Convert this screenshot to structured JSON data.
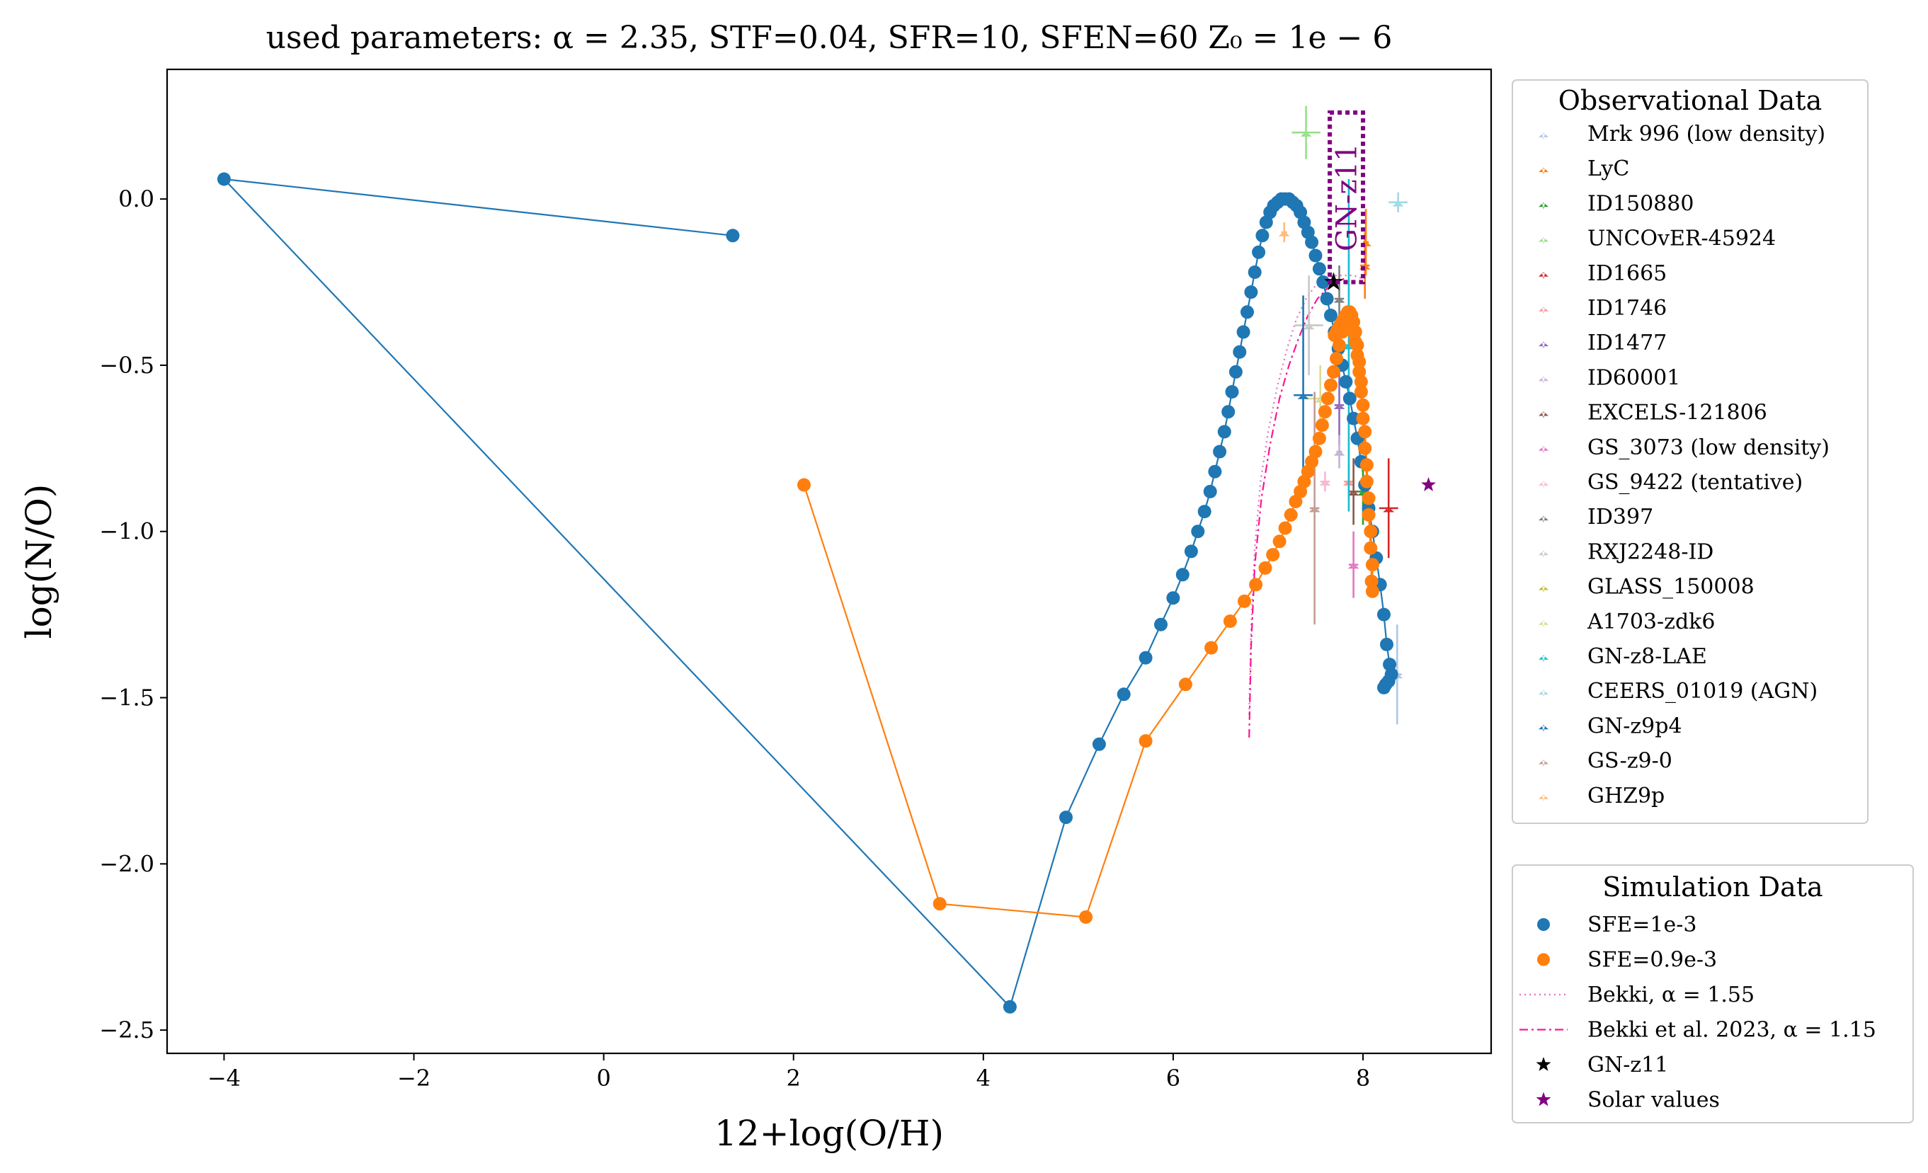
{
  "chart_data": {
    "type": "scatter",
    "title": "used parameters: α = 2.35, STF=0.04, SFR=10, SFEN=60 Z₀ = 1e − 6",
    "xlabel": "12+log(O/H)",
    "ylabel": "log(N/O)",
    "xlim": [
      -4.6,
      9.35
    ],
    "ylim": [
      -2.57,
      0.39
    ],
    "xticks": [
      -4,
      -2,
      0,
      2,
      4,
      6,
      8
    ],
    "yticks": [
      -2.5,
      -2.0,
      -1.5,
      -1.0,
      -0.5,
      0.0
    ],
    "xtick_labels": [
      "−4",
      "−2",
      "0",
      "2",
      "4",
      "6",
      "8"
    ],
    "ytick_labels": [
      "−2.5",
      "−2.0",
      "−1.5",
      "−1.0",
      "−0.5",
      "0.0"
    ],
    "grid": false,
    "annotation": {
      "text": "GN-z11",
      "color": "#800080",
      "box": {
        "x": [
          7.65,
          8.0
        ],
        "y": [
          -0.25,
          0.26
        ]
      }
    },
    "observational_legend": {
      "title": "Observational Data",
      "placement": "right-top",
      "entries": [
        {
          "name": "Mrk 996 (low density)",
          "color": "#aec7e8"
        },
        {
          "name": "LyC",
          "color": "#ff7f0e"
        },
        {
          "name": "ID150880",
          "color": "#2ca02c"
        },
        {
          "name": "UNCOvER-45924",
          "color": "#98df8a"
        },
        {
          "name": "ID1665",
          "color": "#d62728"
        },
        {
          "name": "ID1746",
          "color": "#ff9896"
        },
        {
          "name": "ID1477",
          "color": "#9467bd"
        },
        {
          "name": "ID60001",
          "color": "#c5b0d5"
        },
        {
          "name": "EXCELS-121806",
          "color": "#8c564b"
        },
        {
          "name": "GS_3073 (low density)",
          "color": "#e377c2"
        },
        {
          "name": "GS_9422 (tentative)",
          "color": "#f7b6d2"
        },
        {
          "name": "ID397",
          "color": "#7f7f7f"
        },
        {
          "name": "RXJ2248-ID",
          "color": "#c7c7c7"
        },
        {
          "name": "GLASS_150008",
          "color": "#bcbd22"
        },
        {
          "name": "A1703-zdk6",
          "color": "#dbdb8d"
        },
        {
          "name": "GN-z8-LAE",
          "color": "#17becf"
        },
        {
          "name": "CEERS_01019 (AGN)",
          "color": "#9edae5"
        },
        {
          "name": "GN-z9p4",
          "color": "#1f77b4"
        },
        {
          "name": "GS-z9-0",
          "color": "#c49c94"
        },
        {
          "name": "GHZ9p",
          "color": "#ffbb78"
        }
      ]
    },
    "simulation_legend": {
      "title": "Simulation Data",
      "placement": "right-bottom",
      "entries": [
        {
          "name": "SFE=1e-3",
          "color": "#1f77b4",
          "marker": "circle"
        },
        {
          "name": "SFE=0.9e-3",
          "color": "#ff7f0e",
          "marker": "circle"
        },
        {
          "name": "Bekki, α = 1.55",
          "color": "#e377c2",
          "marker": "dotted"
        },
        {
          "name": "Bekki et al. 2023, α = 1.15",
          "color": "#ff1493",
          "marker": "dashdot"
        },
        {
          "name": "GN-z11",
          "color": "#000000",
          "marker": "star"
        },
        {
          "name": "Solar values",
          "color": "#800080",
          "marker": "star"
        }
      ]
    },
    "observations": [
      {
        "name": "Mrk 996 (low density)",
        "x": 8.36,
        "y": -1.43,
        "xerr": 0.05,
        "yerr": 0.15
      },
      {
        "name": "LyC",
        "x": 8.03,
        "y": -0.13,
        "xerr": 0.03,
        "yerr": 0.1
      },
      {
        "name": "LyC",
        "x": 8.02,
        "y": -0.2,
        "xerr": 0.05,
        "yerr": 0.1
      },
      {
        "name": "ID150880",
        "x": 8.0,
        "y": -0.88,
        "xerr": 0.05,
        "yerr": 0.1
      },
      {
        "name": "UNCOvER-45924",
        "x": 7.4,
        "y": 0.2,
        "xerr": 0.15,
        "yerr": 0.08
      },
      {
        "name": "ID1665",
        "x": 8.27,
        "y": -0.93,
        "xerr": 0.1,
        "yerr": 0.15
      },
      {
        "name": "ID1746",
        "x": 7.85,
        "y": -0.85,
        "xerr": 0.05,
        "yerr": 0.05
      },
      {
        "name": "ID1477",
        "x": 7.75,
        "y": -0.62,
        "xerr": 0.05,
        "yerr": 0.12
      },
      {
        "name": "ID60001",
        "x": 7.75,
        "y": -0.76,
        "xerr": 0.03,
        "yerr": 0.05
      },
      {
        "name": "EXCELS-121806",
        "x": 7.9,
        "y": -0.88,
        "xerr": 0.05,
        "yerr": 0.1
      },
      {
        "name": "GS_3073 (low density)",
        "x": 7.9,
        "y": -1.1,
        "xerr": 0.05,
        "yerr": 0.1
      },
      {
        "name": "GS_9422 (tentative)",
        "x": 7.6,
        "y": -0.85,
        "xerr": 0.05,
        "yerr": 0.03
      },
      {
        "name": "ID397",
        "x": 7.75,
        "y": -0.3,
        "xerr": 0.05,
        "yerr": 0.1
      },
      {
        "name": "RXJ2248-ID",
        "x": 7.43,
        "y": -0.38,
        "xerr": 0.15,
        "yerr": 0.15
      },
      {
        "name": "GLASS_150008",
        "x": 7.7,
        "y": -0.4,
        "xerr": 0.05,
        "yerr": 0.05
      },
      {
        "name": "A1703-zdk6",
        "x": 7.55,
        "y": -0.6,
        "xerr": 0.15,
        "yerr": 0.1
      },
      {
        "name": "GN-z8-LAE",
        "x": 7.85,
        "y": -0.44,
        "xerr": 0.1,
        "yerr": 0.5
      },
      {
        "name": "CEERS_01019 (AGN)",
        "x": 8.37,
        "y": -0.01,
        "xerr": 0.1,
        "yerr": 0.03
      },
      {
        "name": "GN-z9p4",
        "x": 7.37,
        "y": -0.59,
        "xerr": 0.1,
        "yerr": 0.3
      },
      {
        "name": "GS-z9-0",
        "x": 7.49,
        "y": -0.93,
        "xerr": 0.05,
        "yerr": 0.35
      },
      {
        "name": "GHZ9p",
        "x": 7.17,
        "y": -0.1,
        "xerr": 0.03,
        "yerr": 0.03
      }
    ],
    "gnz11": {
      "x": 7.69,
      "y": -0.25
    },
    "solar": {
      "x": 8.69,
      "y": -0.86
    },
    "series": [
      {
        "name": "SFE=1e-3",
        "color": "#1f77b4",
        "x": [
          1.36,
          -4.0,
          4.28,
          4.87,
          5.22,
          5.48,
          5.71,
          5.87,
          6.0,
          6.1,
          6.19,
          6.26,
          6.33,
          6.39,
          6.44,
          6.49,
          6.54,
          6.58,
          6.62,
          6.66,
          6.7,
          6.74,
          6.78,
          6.82,
          6.86,
          6.9,
          6.94,
          6.98,
          7.02,
          7.06,
          7.1,
          7.14,
          7.18,
          7.22,
          7.26,
          7.3,
          7.34,
          7.38,
          7.42,
          7.46,
          7.5,
          7.54,
          7.58,
          7.62,
          7.66,
          7.7,
          7.74,
          7.78,
          7.82,
          7.86,
          7.9,
          7.94,
          7.98,
          8.02,
          8.06,
          8.1,
          8.14,
          8.18,
          8.22,
          8.25,
          8.28,
          8.3,
          8.27,
          8.24,
          8.22
        ],
        "y": [
          -0.11,
          0.06,
          -2.43,
          -1.86,
          -1.64,
          -1.49,
          -1.38,
          -1.28,
          -1.2,
          -1.13,
          -1.06,
          -1.0,
          -0.94,
          -0.88,
          -0.82,
          -0.76,
          -0.7,
          -0.64,
          -0.58,
          -0.52,
          -0.46,
          -0.4,
          -0.34,
          -0.28,
          -0.22,
          -0.16,
          -0.11,
          -0.07,
          -0.04,
          -0.02,
          -0.01,
          0.0,
          0.0,
          0.0,
          -0.01,
          -0.02,
          -0.04,
          -0.07,
          -0.1,
          -0.13,
          -0.17,
          -0.21,
          -0.25,
          -0.3,
          -0.35,
          -0.4,
          -0.45,
          -0.5,
          -0.55,
          -0.6,
          -0.66,
          -0.72,
          -0.79,
          -0.86,
          -0.93,
          -1.0,
          -1.08,
          -1.16,
          -1.25,
          -1.34,
          -1.4,
          -1.43,
          -1.45,
          -1.46,
          -1.47
        ]
      },
      {
        "name": "SFE=0.9e-3",
        "color": "#ff7f0e",
        "x": [
          2.11,
          3.54,
          5.08,
          5.71,
          6.13,
          6.4,
          6.6,
          6.75,
          6.87,
          6.97,
          7.05,
          7.12,
          7.18,
          7.24,
          7.29,
          7.34,
          7.38,
          7.42,
          7.46,
          7.5,
          7.54,
          7.57,
          7.6,
          7.63,
          7.66,
          7.69,
          7.72,
          7.75,
          7.78,
          7.8,
          7.82,
          7.84,
          7.86,
          7.88,
          7.9,
          7.92,
          7.94,
          7.96,
          7.98,
          8.0,
          8.02,
          8.04,
          8.06,
          8.08,
          8.1,
          8.1,
          8.09,
          8.08,
          8.06,
          8.04,
          8.02,
          8.0,
          7.98,
          7.96,
          7.94,
          7.92,
          7.9,
          7.88,
          7.86,
          7.84,
          7.82,
          7.8,
          7.78,
          7.76,
          7.74,
          7.72,
          7.7
        ],
        "y": [
          -0.86,
          -2.12,
          -2.16,
          -1.63,
          -1.46,
          -1.35,
          -1.27,
          -1.21,
          -1.16,
          -1.11,
          -1.07,
          -1.03,
          -0.99,
          -0.95,
          -0.91,
          -0.88,
          -0.85,
          -0.82,
          -0.79,
          -0.76,
          -0.72,
          -0.68,
          -0.64,
          -0.6,
          -0.56,
          -0.52,
          -0.48,
          -0.44,
          -0.4,
          -0.37,
          -0.35,
          -0.34,
          -0.34,
          -0.35,
          -0.37,
          -0.4,
          -0.44,
          -0.49,
          -0.55,
          -0.62,
          -0.7,
          -0.8,
          -0.9,
          -1.0,
          -1.1,
          -1.18,
          -1.15,
          -1.05,
          -0.95,
          -0.85,
          -0.75,
          -0.66,
          -0.58,
          -0.52,
          -0.47,
          -0.43,
          -0.4,
          -0.38,
          -0.36,
          -0.35,
          -0.35,
          -0.36,
          -0.37,
          -0.38,
          -0.39,
          -0.4,
          -0.41
        ]
      }
    ],
    "bekki_155": {
      "name": "Bekki, α = 1.55",
      "color": "#e377c2",
      "x": [
        6.8,
        6.82,
        6.86,
        6.92,
        7.0,
        7.1,
        7.2,
        7.3,
        7.4,
        7.5,
        7.6,
        7.7,
        7.8,
        7.9,
        8.0,
        8.05
      ],
      "y": [
        -1.55,
        -1.3,
        -1.05,
        -0.85,
        -0.7,
        -0.56,
        -0.45,
        -0.36,
        -0.3,
        -0.26,
        -0.24,
        -0.23,
        -0.23,
        -0.23,
        -0.24,
        -0.24
      ]
    },
    "bekki_115": {
      "name": "Bekki et al. 2023, α = 1.15",
      "color": "#ff1493",
      "x": [
        6.8,
        6.82,
        6.86,
        6.93,
        7.02,
        7.12,
        7.22,
        7.32,
        7.42,
        7.52,
        7.62,
        7.72,
        7.8
      ],
      "y": [
        -1.62,
        -1.35,
        -1.1,
        -0.9,
        -0.74,
        -0.6,
        -0.5,
        -0.42,
        -0.35,
        -0.3,
        -0.27,
        -0.25,
        -0.24
      ]
    }
  }
}
